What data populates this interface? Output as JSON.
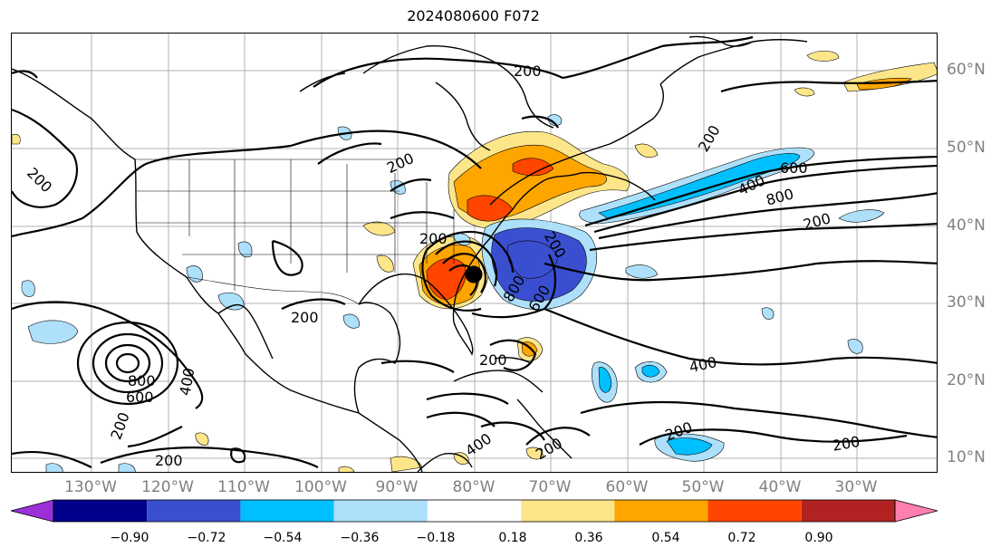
{
  "title": "2024080600 F072",
  "longitude_labels": [
    "130°W",
    "120°W",
    "110°W",
    "100°W",
    "90°W",
    "80°W",
    "70°W",
    "60°W",
    "50°W",
    "40°W",
    "30°W"
  ],
  "latitude_labels": [
    "60°N",
    "50°N",
    "40°N",
    "30°N",
    "20°N",
    "10°N"
  ],
  "contour_labels": [
    "200",
    "200",
    "200",
    "200",
    "200",
    "200",
    "200",
    "200",
    "200",
    "200",
    "200",
    "200",
    "400",
    "400",
    "400",
    "400",
    "600",
    "600",
    "600",
    "800",
    "800",
    "800",
    "200",
    "200"
  ],
  "colorbar": {
    "ticks": [
      "−0.90",
      "−0.72",
      "−0.54",
      "−0.36",
      "−0.18",
      "0.18",
      "0.36",
      "0.54",
      "0.72",
      "0.90"
    ],
    "colors": [
      "#9b30d9",
      "#00008b",
      "#3a4fd0",
      "#00bfff",
      "#aee0fb",
      "#ffffff",
      "#fde68a",
      "#ffa500",
      "#ff4500",
      "#b22222",
      "#ff80b0"
    ]
  }
}
